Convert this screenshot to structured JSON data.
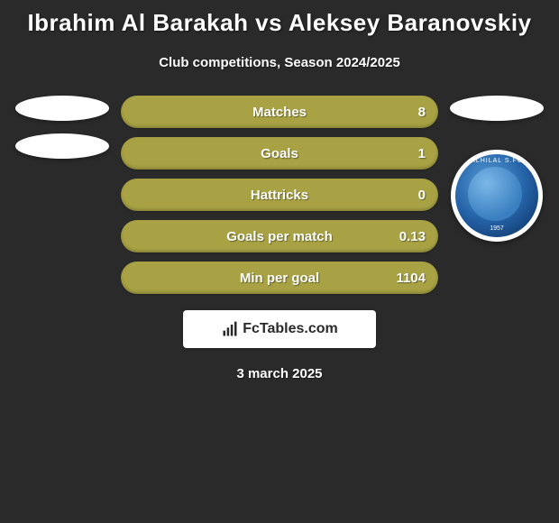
{
  "title": "Ibrahim Al Barakah vs Aleksey Baranovskiy",
  "subtitle": "Club competitions, Season 2024/2025",
  "date": "3 march 2025",
  "attribution": "FcTables.com",
  "bar_color": "#a8a244",
  "background_color": "#2a2a2a",
  "stats": [
    {
      "label": "Matches",
      "value": "8"
    },
    {
      "label": "Goals",
      "value": "1"
    },
    {
      "label": "Hattricks",
      "value": "0"
    },
    {
      "label": "Goals per match",
      "value": "0.13"
    },
    {
      "label": "Min per goal",
      "value": "1104"
    }
  ],
  "left_player": {
    "ellipses": 2
  },
  "right_player": {
    "ellipses": 1,
    "badge_text_top": "ALHILAL S.FC",
    "badge_text_year": "1957"
  }
}
